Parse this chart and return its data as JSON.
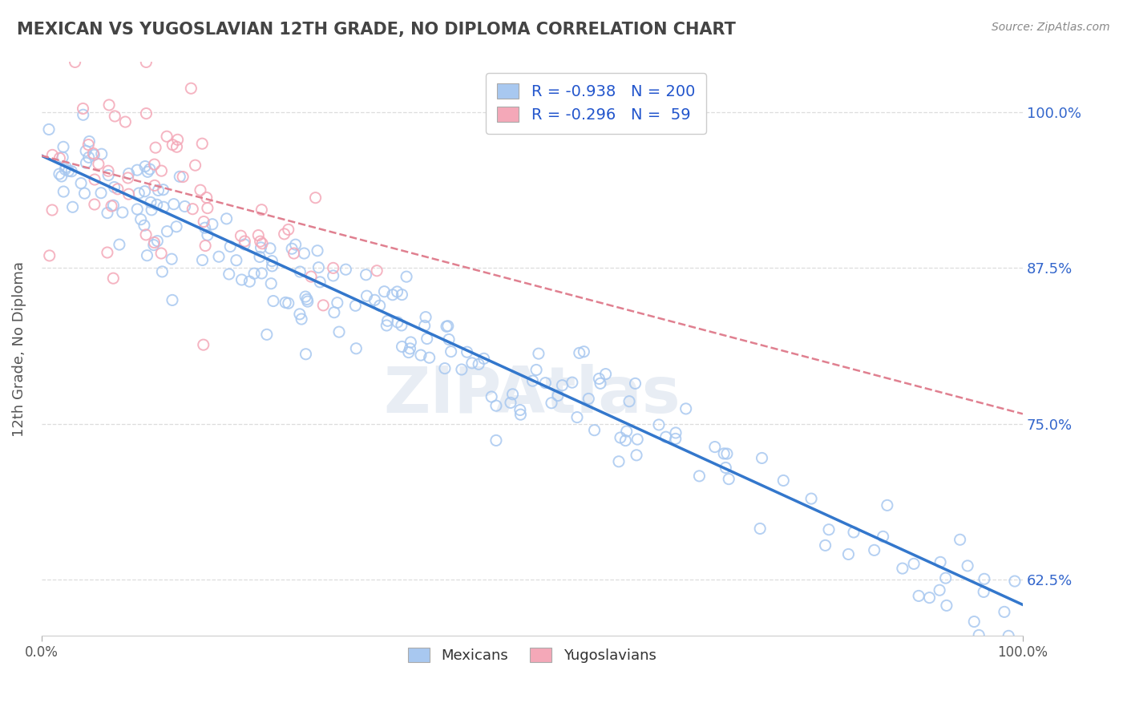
{
  "title": "MEXICAN VS YUGOSLAVIAN 12TH GRADE, NO DIPLOMA CORRELATION CHART",
  "source": "Source: ZipAtlas.com",
  "ylabel": "12th Grade, No Diploma",
  "legend_mexicans": "Mexicans",
  "legend_yugoslavians": "Yugoslavians",
  "mexican_R": -0.938,
  "mexican_N": 200,
  "yugoslav_R": -0.296,
  "yugoslav_N": 59,
  "mexican_color": "#a8c8f0",
  "yugoslav_color": "#f4a8b8",
  "mexican_line_color": "#3377cc",
  "yugoslav_line_color": "#e08090",
  "legend_text_color": "#2255cc",
  "ytick_color": "#3366cc",
  "title_color": "#444444",
  "watermark": "ZIPAtlas",
  "xlim": [
    0.0,
    1.0
  ],
  "ylim": [
    0.58,
    1.04
  ],
  "yticks": [
    0.625,
    0.75,
    0.875,
    1.0
  ],
  "ytick_labels": [
    "62.5%",
    "75.0%",
    "87.5%",
    "100.0%"
  ],
  "background_color": "#ffffff",
  "grid_color": "#dddddd",
  "mex_line_x0": 0.0,
  "mex_line_y0": 0.965,
  "mex_line_x1": 1.0,
  "mex_line_y1": 0.605,
  "yug_line_x0": 0.0,
  "yug_line_y0": 0.965,
  "yug_line_x1": 1.0,
  "yug_line_y1": 0.758
}
